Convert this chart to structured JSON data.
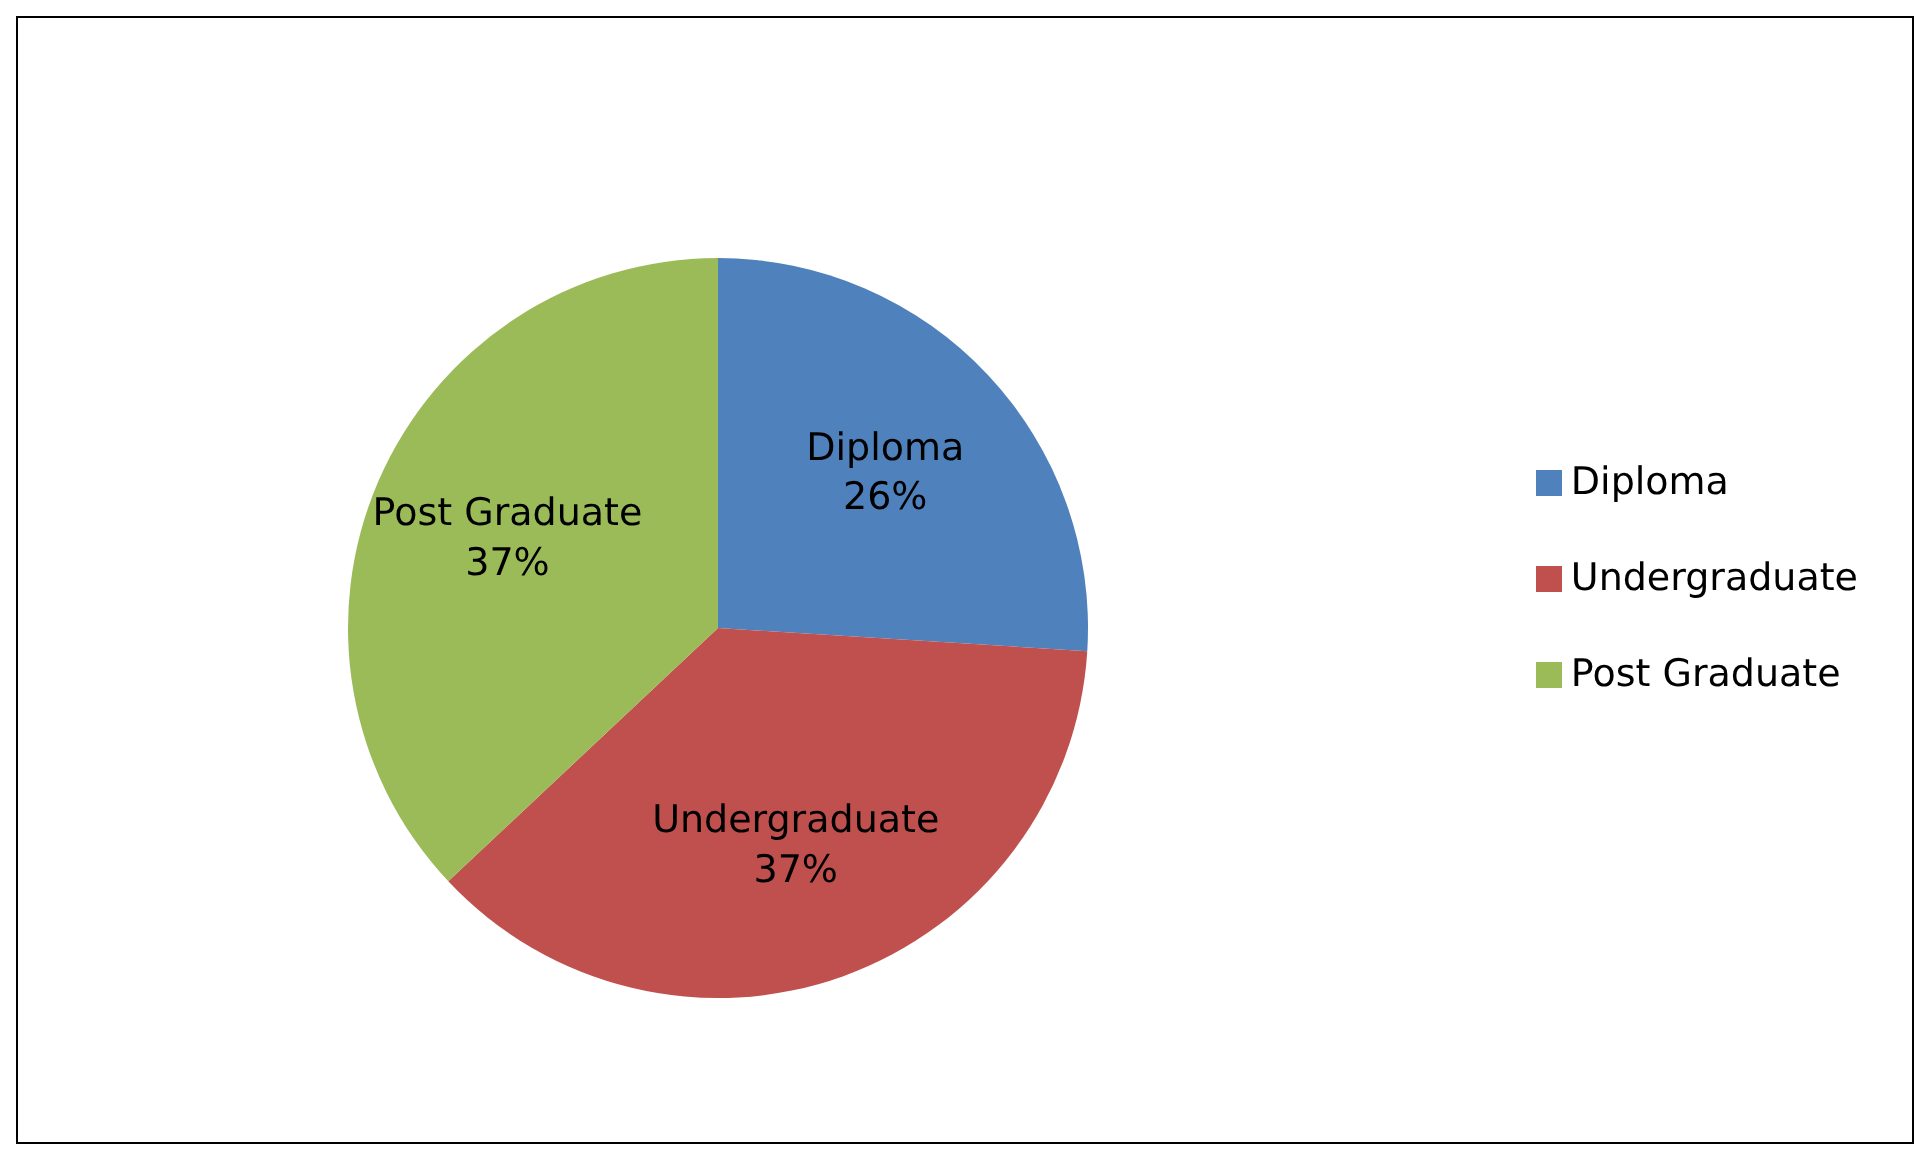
{
  "chart_data": {
    "type": "pie",
    "categories": [
      "Diploma",
      "Undergraduate",
      "Post Graduate"
    ],
    "values": [
      26,
      37,
      37
    ],
    "value_labels": [
      "26%",
      "37%",
      "37%"
    ],
    "data_labels": true,
    "colors": [
      "#4f81bd",
      "#c0504d",
      "#9bbb59"
    ],
    "legend": "right"
  }
}
